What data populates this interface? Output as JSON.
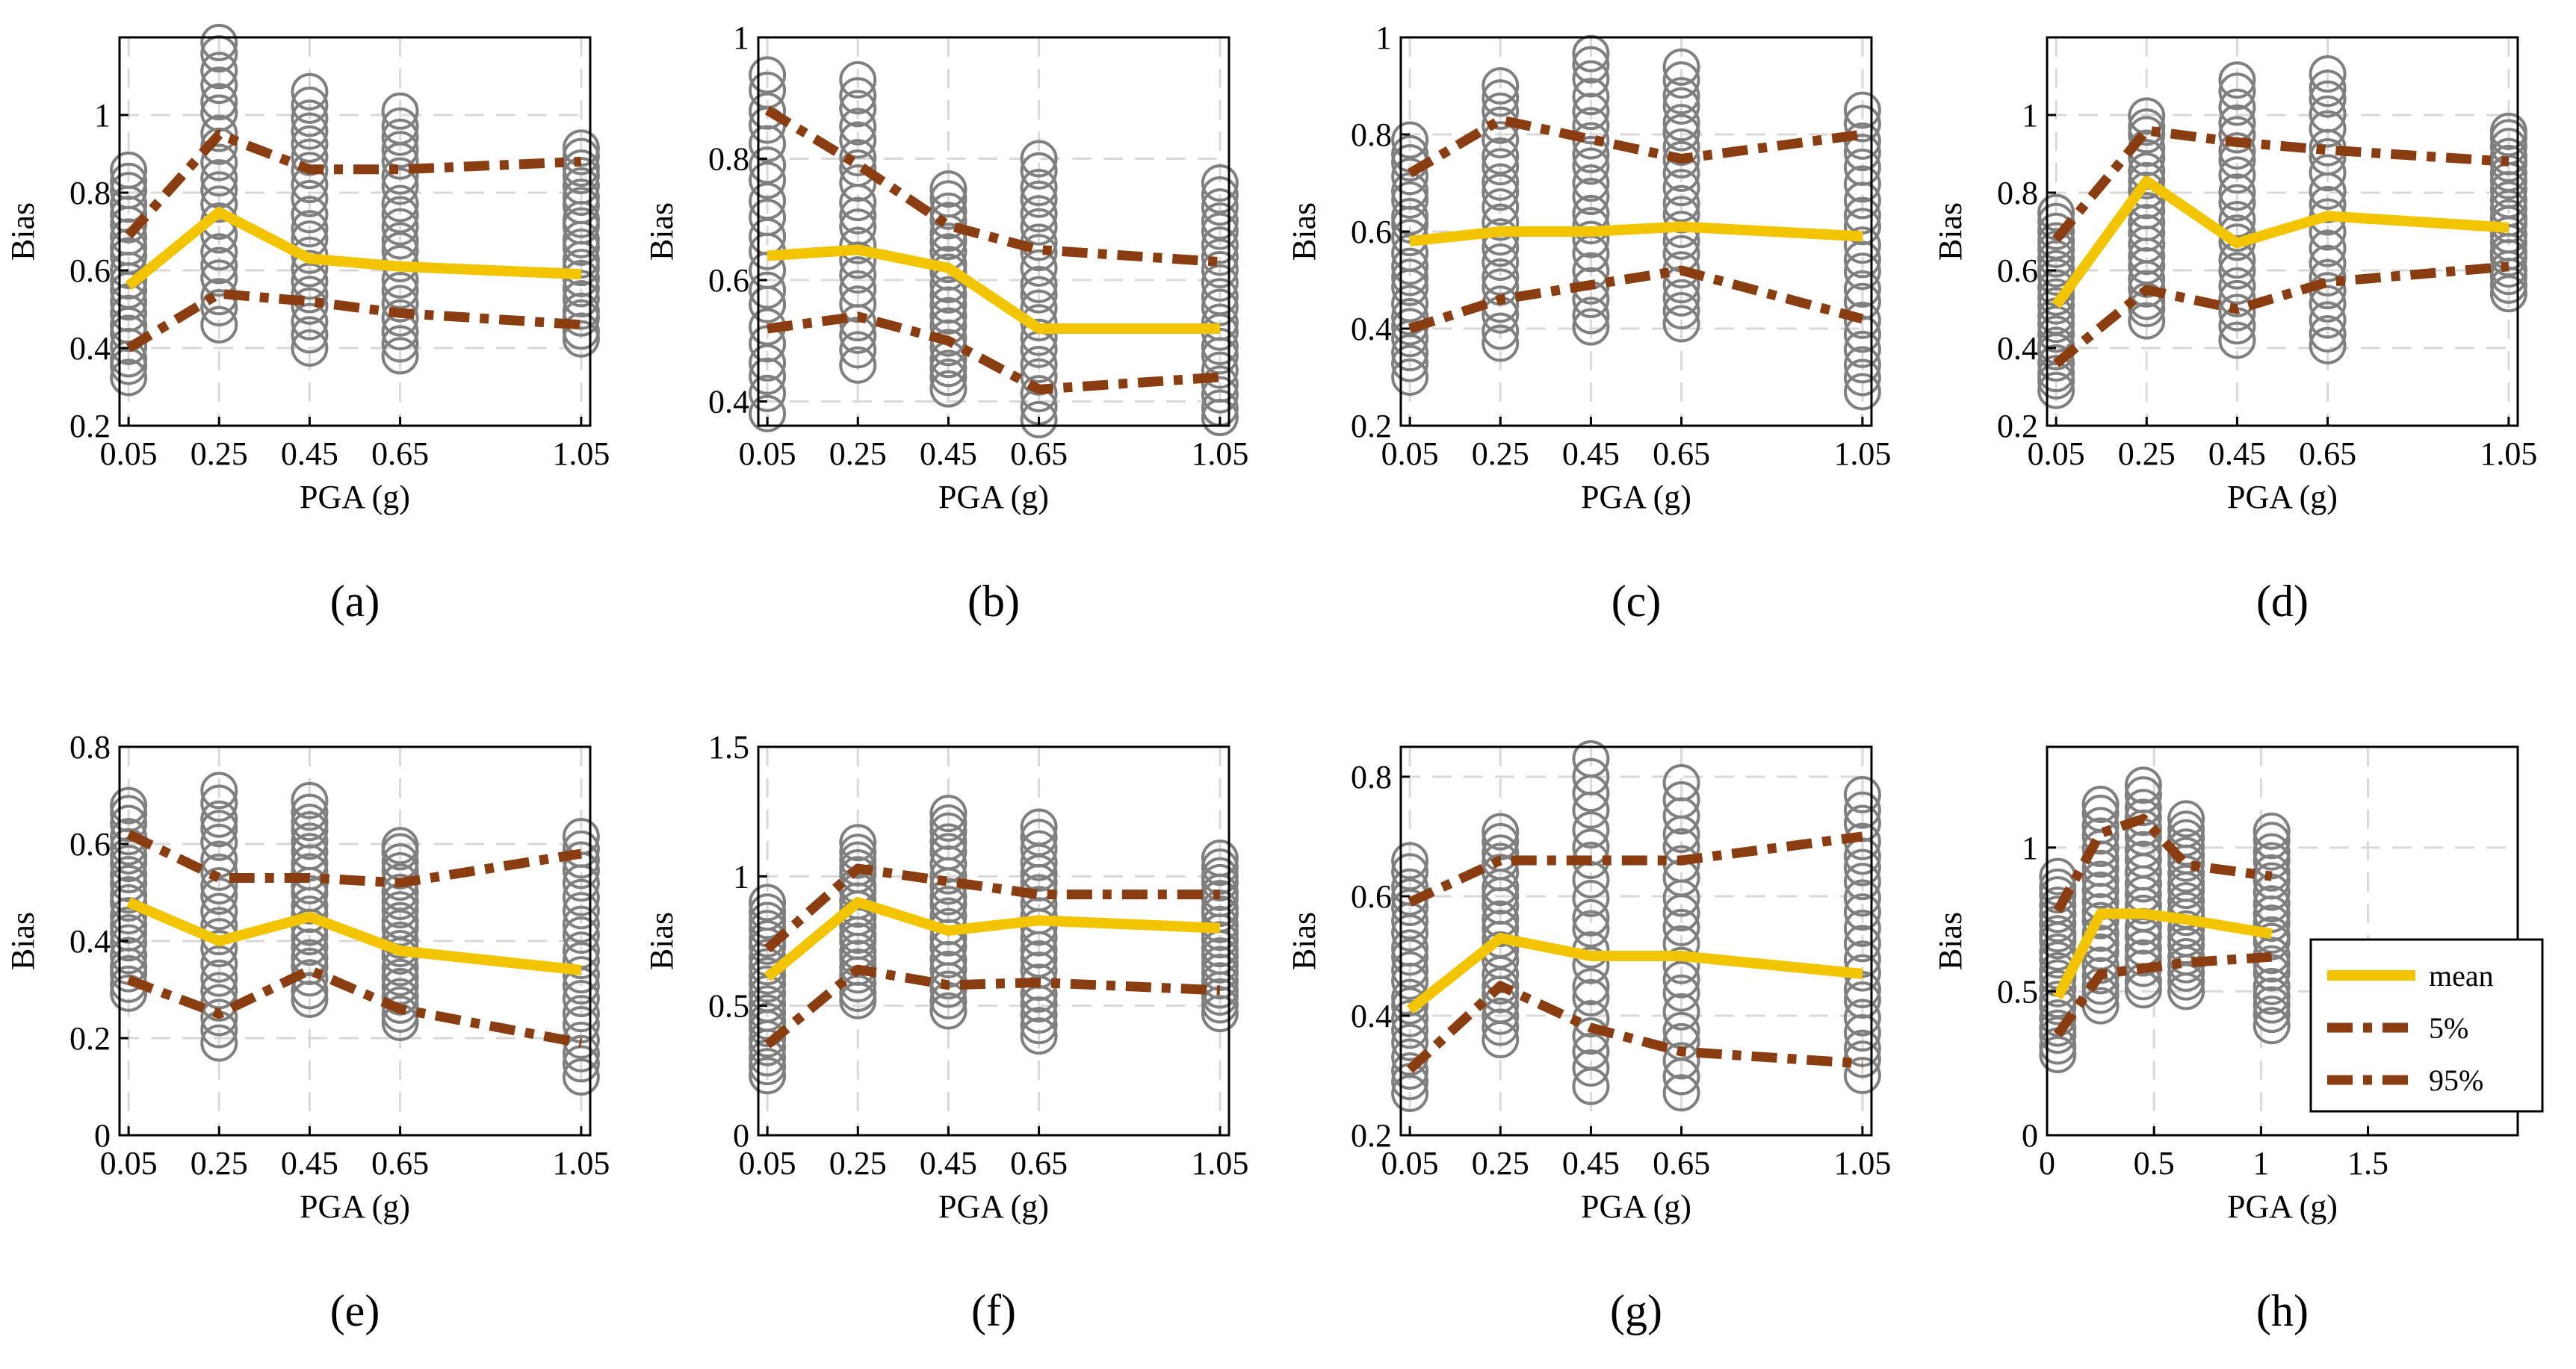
{
  "chart_data": [
    {
      "type": "line",
      "panel_label": "(a)",
      "xlabel": "PGA (g)",
      "ylabel": "Bias",
      "xlim": [
        0.03,
        1.07
      ],
      "ylim": [
        0.2,
        1.2
      ],
      "xticks": [
        0.05,
        0.25,
        0.45,
        0.65,
        1.05
      ],
      "xtick_labels": [
        "0.05",
        "0.25",
        "0.45",
        "0.65",
        "1.05"
      ],
      "yticks": [
        0.2,
        0.4,
        0.6,
        0.8,
        1.0
      ],
      "ytick_labels": [
        "0.2",
        "0.4",
        "0.6",
        "0.8",
        "1"
      ],
      "grid": true,
      "x": [
        0.05,
        0.25,
        0.45,
        0.65,
        1.05
      ],
      "series": [
        {
          "name": "mean",
          "values": [
            0.56,
            0.75,
            0.63,
            0.61,
            0.59
          ]
        },
        {
          "name": "5%",
          "values": [
            0.4,
            0.54,
            0.52,
            0.49,
            0.46
          ]
        },
        {
          "name": "95%",
          "values": [
            0.69,
            0.95,
            0.86,
            0.86,
            0.88
          ]
        }
      ],
      "scatter_ranges": [
        [
          0.32,
          0.86
        ],
        [
          0.46,
          1.19
        ],
        [
          0.4,
          1.06
        ],
        [
          0.38,
          1.01
        ],
        [
          0.42,
          0.92
        ]
      ]
    },
    {
      "type": "line",
      "panel_label": "(b)",
      "xlabel": "PGA (g)",
      "ylabel": "Bias",
      "xlim": [
        0.03,
        1.07
      ],
      "ylim": [
        0.36,
        1.0
      ],
      "xticks": [
        0.05,
        0.25,
        0.45,
        0.65,
        1.05
      ],
      "xtick_labels": [
        "0.05",
        "0.25",
        "0.45",
        "0.65",
        "1.05"
      ],
      "yticks": [
        0.4,
        0.6,
        0.8,
        1.0
      ],
      "ytick_labels": [
        "0.4",
        "0.6",
        "0.8",
        "1"
      ],
      "grid": true,
      "x": [
        0.05,
        0.25,
        0.45,
        0.65,
        1.05
      ],
      "series": [
        {
          "name": "mean",
          "values": [
            0.64,
            0.65,
            0.62,
            0.52,
            0.52
          ]
        },
        {
          "name": "5%",
          "values": [
            0.52,
            0.54,
            0.5,
            0.42,
            0.44
          ]
        },
        {
          "name": "95%",
          "values": [
            0.88,
            0.79,
            0.69,
            0.65,
            0.63
          ]
        }
      ],
      "scatter_ranges": [
        [
          0.38,
          0.94
        ],
        [
          0.46,
          0.93
        ],
        [
          0.42,
          0.75
        ],
        [
          0.37,
          0.8
        ],
        [
          0.37,
          0.76
        ]
      ]
    },
    {
      "type": "line",
      "panel_label": "(c)",
      "xlabel": "PGA (g)",
      "ylabel": "Bias",
      "xlim": [
        0.03,
        1.07
      ],
      "ylim": [
        0.2,
        1.0
      ],
      "xticks": [
        0.05,
        0.25,
        0.45,
        0.65,
        1.05
      ],
      "xtick_labels": [
        "0.05",
        "0.25",
        "0.45",
        "0.65",
        "1.05"
      ],
      "yticks": [
        0.2,
        0.4,
        0.6,
        0.8,
        1.0
      ],
      "ytick_labels": [
        "0.2",
        "0.4",
        "0.6",
        "0.8",
        "1"
      ],
      "grid": true,
      "x": [
        0.05,
        0.25,
        0.45,
        0.65,
        1.05
      ],
      "series": [
        {
          "name": "mean",
          "values": [
            0.58,
            0.6,
            0.6,
            0.61,
            0.59
          ]
        },
        {
          "name": "5%",
          "values": [
            0.4,
            0.46,
            0.49,
            0.52,
            0.42
          ]
        },
        {
          "name": "95%",
          "values": [
            0.72,
            0.83,
            0.79,
            0.75,
            0.8
          ]
        }
      ],
      "scatter_ranges": [
        [
          0.3,
          0.79
        ],
        [
          0.37,
          0.9
        ],
        [
          0.4,
          0.97
        ],
        [
          0.41,
          0.94
        ],
        [
          0.27,
          0.85
        ]
      ]
    },
    {
      "type": "line",
      "panel_label": "(d)",
      "xlabel": "PGA (g)",
      "ylabel": "Bias",
      "xlim": [
        0.03,
        1.07
      ],
      "ylim": [
        0.2,
        1.2
      ],
      "xticks": [
        0.05,
        0.25,
        0.45,
        0.65,
        1.05
      ],
      "xtick_labels": [
        "0.05",
        "0.25",
        "0.45",
        "0.65",
        "1.05"
      ],
      "yticks": [
        0.2,
        0.4,
        0.6,
        0.8,
        1.0
      ],
      "ytick_labels": [
        "0.2",
        "0.4",
        "0.6",
        "0.8",
        "1"
      ],
      "grid": true,
      "x": [
        0.05,
        0.25,
        0.45,
        0.65,
        1.05
      ],
      "series": [
        {
          "name": "mean",
          "values": [
            0.51,
            0.83,
            0.67,
            0.74,
            0.71
          ]
        },
        {
          "name": "5%",
          "values": [
            0.36,
            0.55,
            0.5,
            0.57,
            0.61
          ]
        },
        {
          "name": "95%",
          "values": [
            0.68,
            0.96,
            0.93,
            0.91,
            0.88
          ]
        }
      ],
      "scatter_ranges": [
        [
          0.29,
          0.75
        ],
        [
          0.47,
          1.0
        ],
        [
          0.42,
          1.09
        ],
        [
          0.4,
          1.11
        ],
        [
          0.54,
          0.96
        ]
      ]
    },
    {
      "type": "line",
      "panel_label": "(e)",
      "xlabel": "PGA (g)",
      "ylabel": "Bias",
      "xlim": [
        0.03,
        1.07
      ],
      "ylim": [
        0,
        0.8
      ],
      "xticks": [
        0.05,
        0.25,
        0.45,
        0.65,
        1.05
      ],
      "xtick_labels": [
        "0.05",
        "0.25",
        "0.45",
        "0.65",
        "1.05"
      ],
      "yticks": [
        0,
        0.2,
        0.4,
        0.6,
        0.8
      ],
      "ytick_labels": [
        "0",
        "0.2",
        "0.4",
        "0.6",
        "0.8"
      ],
      "grid": true,
      "x": [
        0.05,
        0.25,
        0.45,
        0.65,
        1.05
      ],
      "series": [
        {
          "name": "mean",
          "values": [
            0.48,
            0.4,
            0.45,
            0.38,
            0.34
          ]
        },
        {
          "name": "5%",
          "values": [
            0.32,
            0.25,
            0.34,
            0.26,
            0.19
          ]
        },
        {
          "name": "95%",
          "values": [
            0.62,
            0.53,
            0.53,
            0.52,
            0.58
          ]
        }
      ],
      "scatter_ranges": [
        [
          0.29,
          0.68
        ],
        [
          0.19,
          0.71
        ],
        [
          0.28,
          0.69
        ],
        [
          0.23,
          0.6
        ],
        [
          0.12,
          0.62
        ]
      ]
    },
    {
      "type": "line",
      "panel_label": "(f)",
      "xlabel": "PGA (g)",
      "ylabel": "Bias",
      "xlim": [
        0.03,
        1.07
      ],
      "ylim": [
        0,
        1.5
      ],
      "xticks": [
        0.05,
        0.25,
        0.45,
        0.65,
        1.05
      ],
      "xtick_labels": [
        "0.05",
        "0.25",
        "0.45",
        "0.65",
        "1.05"
      ],
      "yticks": [
        0,
        0.5,
        1.0,
        1.5
      ],
      "ytick_labels": [
        "0",
        "0.5",
        "1",
        "1.5"
      ],
      "grid": true,
      "x": [
        0.05,
        0.25,
        0.45,
        0.65,
        1.05
      ],
      "series": [
        {
          "name": "mean",
          "values": [
            0.61,
            0.9,
            0.79,
            0.83,
            0.8
          ]
        },
        {
          "name": "5%",
          "values": [
            0.35,
            0.64,
            0.58,
            0.59,
            0.56
          ]
        },
        {
          "name": "95%",
          "values": [
            0.72,
            1.03,
            0.98,
            0.93,
            0.93
          ]
        }
      ],
      "scatter_ranges": [
        [
          0.23,
          0.9
        ],
        [
          0.52,
          1.13
        ],
        [
          0.48,
          1.25
        ],
        [
          0.38,
          1.19
        ],
        [
          0.47,
          1.07
        ]
      ]
    },
    {
      "type": "line",
      "panel_label": "(g)",
      "xlabel": "PGA (g)",
      "ylabel": "Bias",
      "xlim": [
        0.03,
        1.07
      ],
      "ylim": [
        0.2,
        0.85
      ],
      "xticks": [
        0.05,
        0.25,
        0.45,
        0.65,
        1.05
      ],
      "xtick_labels": [
        "0.05",
        "0.25",
        "0.45",
        "0.65",
        "1.05"
      ],
      "yticks": [
        0.2,
        0.4,
        0.6,
        0.8
      ],
      "ytick_labels": [
        "0.2",
        "0.4",
        "0.6",
        "0.8"
      ],
      "grid": true,
      "x": [
        0.05,
        0.25,
        0.45,
        0.65,
        1.05
      ],
      "series": [
        {
          "name": "mean",
          "values": [
            0.41,
            0.53,
            0.5,
            0.5,
            0.47
          ]
        },
        {
          "name": "5%",
          "values": [
            0.31,
            0.45,
            0.38,
            0.34,
            0.32
          ]
        },
        {
          "name": "95%",
          "values": [
            0.59,
            0.66,
            0.66,
            0.66,
            0.7
          ]
        }
      ],
      "scatter_ranges": [
        [
          0.27,
          0.66
        ],
        [
          0.36,
          0.71
        ],
        [
          0.28,
          0.83
        ],
        [
          0.27,
          0.79
        ],
        [
          0.3,
          0.77
        ]
      ]
    },
    {
      "type": "line",
      "panel_label": "(h)",
      "xlabel": "PGA (g)",
      "ylabel": "Bias",
      "xlim": [
        0,
        2.2
      ],
      "ylim": [
        0,
        1.35
      ],
      "xticks": [
        0,
        0.5,
        1.0,
        1.5
      ],
      "xtick_labels": [
        "0",
        "0.5",
        "1",
        "1.5"
      ],
      "yticks": [
        0,
        0.5,
        1.0
      ],
      "ytick_labels": [
        "0",
        "0.5",
        "1"
      ],
      "grid": true,
      "legend_position": "right",
      "x": [
        0.05,
        0.25,
        0.45,
        0.65,
        1.05
      ],
      "series": [
        {
          "name": "mean",
          "values": [
            0.48,
            0.77,
            0.77,
            0.75,
            0.7
          ]
        },
        {
          "name": "5%",
          "values": [
            0.35,
            0.56,
            0.58,
            0.6,
            0.62
          ]
        },
        {
          "name": "95%",
          "values": [
            0.78,
            1.05,
            1.1,
            0.94,
            0.9
          ]
        }
      ],
      "scatter_ranges": [
        [
          0.28,
          0.9
        ],
        [
          0.45,
          1.15
        ],
        [
          0.5,
          1.22
        ],
        [
          0.5,
          1.1
        ],
        [
          0.38,
          1.06
        ]
      ]
    }
  ],
  "colors": {
    "mean": "#f2c500",
    "bounds": "#8b3d12",
    "markers": "#7f7f7f",
    "grid": "#d9d9d9"
  }
}
